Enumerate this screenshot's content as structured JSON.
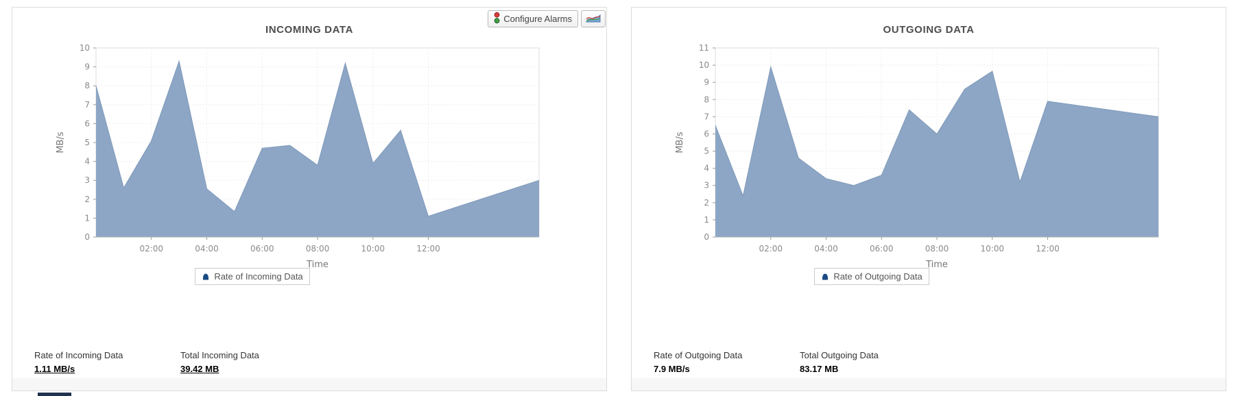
{
  "toolbar": {
    "configure_alarms_label": "Configure Alarms"
  },
  "colors": {
    "area_fill": "#8da6c5",
    "area_stroke": "#7e99ba",
    "legend_marker": "#1b4a84",
    "card_border": "#dcdcdc",
    "footer_bg": "#f7f7f7",
    "traffic_light_red": "#dd3c3c",
    "traffic_light_green": "#3fa044"
  },
  "chart_data": [
    {
      "type": "area",
      "title": "INCOMING DATA",
      "xlabel": "Time",
      "ylabel": "MB/s",
      "ylim": [
        0,
        10
      ],
      "yticks": [
        0,
        1,
        2,
        3,
        4,
        5,
        6,
        7,
        8,
        9,
        10
      ],
      "xlim_hours": [
        0,
        16
      ],
      "xticks": [
        {
          "hour": 2,
          "label": "02:00"
        },
        {
          "hour": 4,
          "label": "04:00"
        },
        {
          "hour": 6,
          "label": "06:00"
        },
        {
          "hour": 8,
          "label": "08:00"
        },
        {
          "hour": 10,
          "label": "10:00"
        },
        {
          "hour": 12,
          "label": "12:00"
        }
      ],
      "grid": true,
      "legend_position": "bottom",
      "series": [
        {
          "name": "Rate of Incoming Data",
          "x_hours": [
            0,
            1,
            2,
            3,
            4,
            5,
            6,
            7,
            8,
            9,
            10,
            11,
            12,
            16
          ],
          "values": [
            8.0,
            2.6,
            5.1,
            9.3,
            2.55,
            1.35,
            4.7,
            4.85,
            3.8,
            9.2,
            3.9,
            5.65,
            1.1,
            3.0
          ]
        }
      ],
      "stats": [
        {
          "label": "Rate of Incoming Data",
          "value": "1.11 MB/s"
        },
        {
          "label": "Total Incoming Data",
          "value": "39.42 MB"
        }
      ]
    },
    {
      "type": "area",
      "title": "OUTGOING DATA",
      "xlabel": "Time",
      "ylabel": "MB/s",
      "ylim": [
        0,
        11
      ],
      "yticks": [
        0,
        1,
        2,
        3,
        4,
        5,
        6,
        7,
        8,
        9,
        10,
        11
      ],
      "xlim_hours": [
        0,
        16
      ],
      "xticks": [
        {
          "hour": 2,
          "label": "02:00"
        },
        {
          "hour": 4,
          "label": "04:00"
        },
        {
          "hour": 6,
          "label": "06:00"
        },
        {
          "hour": 8,
          "label": "08:00"
        },
        {
          "hour": 10,
          "label": "10:00"
        },
        {
          "hour": 12,
          "label": "12:00"
        }
      ],
      "grid": true,
      "legend_position": "bottom",
      "series": [
        {
          "name": "Rate of Outgoing Data",
          "x_hours": [
            0,
            1,
            2,
            3,
            4,
            5,
            6,
            7,
            8,
            9,
            10,
            11,
            12,
            16
          ],
          "values": [
            6.5,
            2.4,
            9.9,
            4.6,
            3.4,
            3.0,
            3.6,
            7.4,
            6.0,
            8.6,
            9.65,
            3.2,
            7.9,
            7.0
          ]
        }
      ],
      "stats": [
        {
          "label": "Rate of Outgoing Data",
          "value": "7.9 MB/s"
        },
        {
          "label": "Total Outgoing Data",
          "value": "83.17 MB"
        }
      ]
    }
  ]
}
